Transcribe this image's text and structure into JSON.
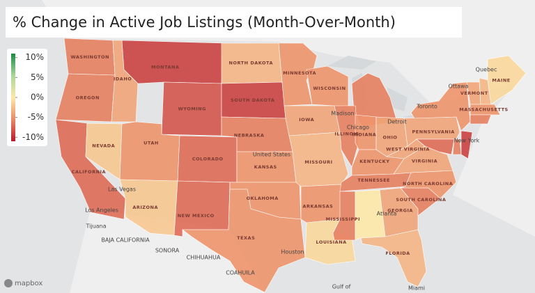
{
  "title": "% Change in Active Job Listings (Month-Over-Month)",
  "legend": {
    "min": -11,
    "max": 11,
    "colors": [
      "#b8192e",
      "#ec8a66",
      "#fde8a8",
      "#a9d79a",
      "#1a8a44"
    ],
    "ticks": [
      {
        "value": 10,
        "label": "10%"
      },
      {
        "value": 5,
        "label": "5%"
      },
      {
        "value": 0,
        "label": "0%"
      },
      {
        "value": -5,
        "label": "-5%"
      },
      {
        "value": -10,
        "label": "-10%"
      }
    ]
  },
  "states": [
    {
      "label": "WASHINGTON",
      "value": -6
    },
    {
      "label": "OREGON",
      "value": -6
    },
    {
      "label": "CALIFORNIA",
      "value": -7
    },
    {
      "label": "NEVADA",
      "value": -2
    },
    {
      "label": "IDAHO",
      "value": -4
    },
    {
      "label": "MONTANA",
      "value": -9
    },
    {
      "label": "WYOMING",
      "value": -8
    },
    {
      "label": "UTAH",
      "value": -5
    },
    {
      "label": "ARIZONA",
      "value": -2
    },
    {
      "label": "COLORADO",
      "value": -7
    },
    {
      "label": "NEW MEXICO",
      "value": -7
    },
    {
      "label": "NORTH DAKOTA",
      "value": -3
    },
    {
      "label": "SOUTH DAKOTA",
      "value": -9
    },
    {
      "label": "NEBRASKA",
      "value": -6
    },
    {
      "label": "KANSAS",
      "value": -5
    },
    {
      "label": "OKLAHOMA",
      "value": -5
    },
    {
      "label": "TEXAS",
      "value": -5
    },
    {
      "label": "MINNESOTA",
      "value": -5
    },
    {
      "label": "IOWA",
      "value": -4
    },
    {
      "label": "MISSOURI",
      "value": -3
    },
    {
      "label": "ARKANSAS",
      "value": -5
    },
    {
      "label": "LOUISIANA",
      "value": -1
    },
    {
      "label": "WISCONSIN",
      "value": -5
    },
    {
      "value": -6
    },
    {
      "label": "ILLINOIS",
      "value": -6
    },
    {
      "label": "INDIANA",
      "value": -5
    },
    {
      "label": "OHIO",
      "value": -4
    },
    {
      "label": "KENTUCKY",
      "value": -5
    },
    {
      "label": "TENNESSEE",
      "value": -6
    },
    {
      "label": "MISSISSIPPI",
      "value": -6
    },
    {
      "value": 0
    },
    {
      "label": "GEORGIA",
      "value": -4
    },
    {
      "label": "FLORIDA",
      "value": -3
    },
    {
      "label": "SOUTH CAROLINA",
      "value": -6
    },
    {
      "label": "NORTH CAROLINA",
      "value": -5
    },
    {
      "label": "VIRGINIA",
      "value": -4
    },
    {
      "label": "WEST VIRGINIA",
      "value": -4
    },
    {
      "label": "PENNSYLVANIA",
      "value": -4
    },
    {
      "value": -5
    },
    {
      "value": -9
    },
    {
      "value": -7
    },
    {
      "value": -6
    },
    {
      "label": "VERMONT",
      "value": -4
    },
    {
      "value": -3
    },
    {
      "label": "MAINE",
      "value": -1
    },
    {
      "label": "MASSACHUSETTS",
      "value": -5
    },
    {
      "value": -6
    }
  ],
  "places": [
    "Quebec",
    "Ottawa",
    "Toronto",
    "Detroit",
    "Chicago",
    "Madison",
    "United States",
    "New York",
    "Las Vegas",
    "Los Angeles",
    "Tijuana",
    "Atlanta",
    "Houston",
    "Miami",
    "SONORA",
    "CHIHUAHUA",
    "COAHUILA",
    "BAJA CALIFORNIA",
    "Gulf of"
  ],
  "attribution": "mapbox"
}
